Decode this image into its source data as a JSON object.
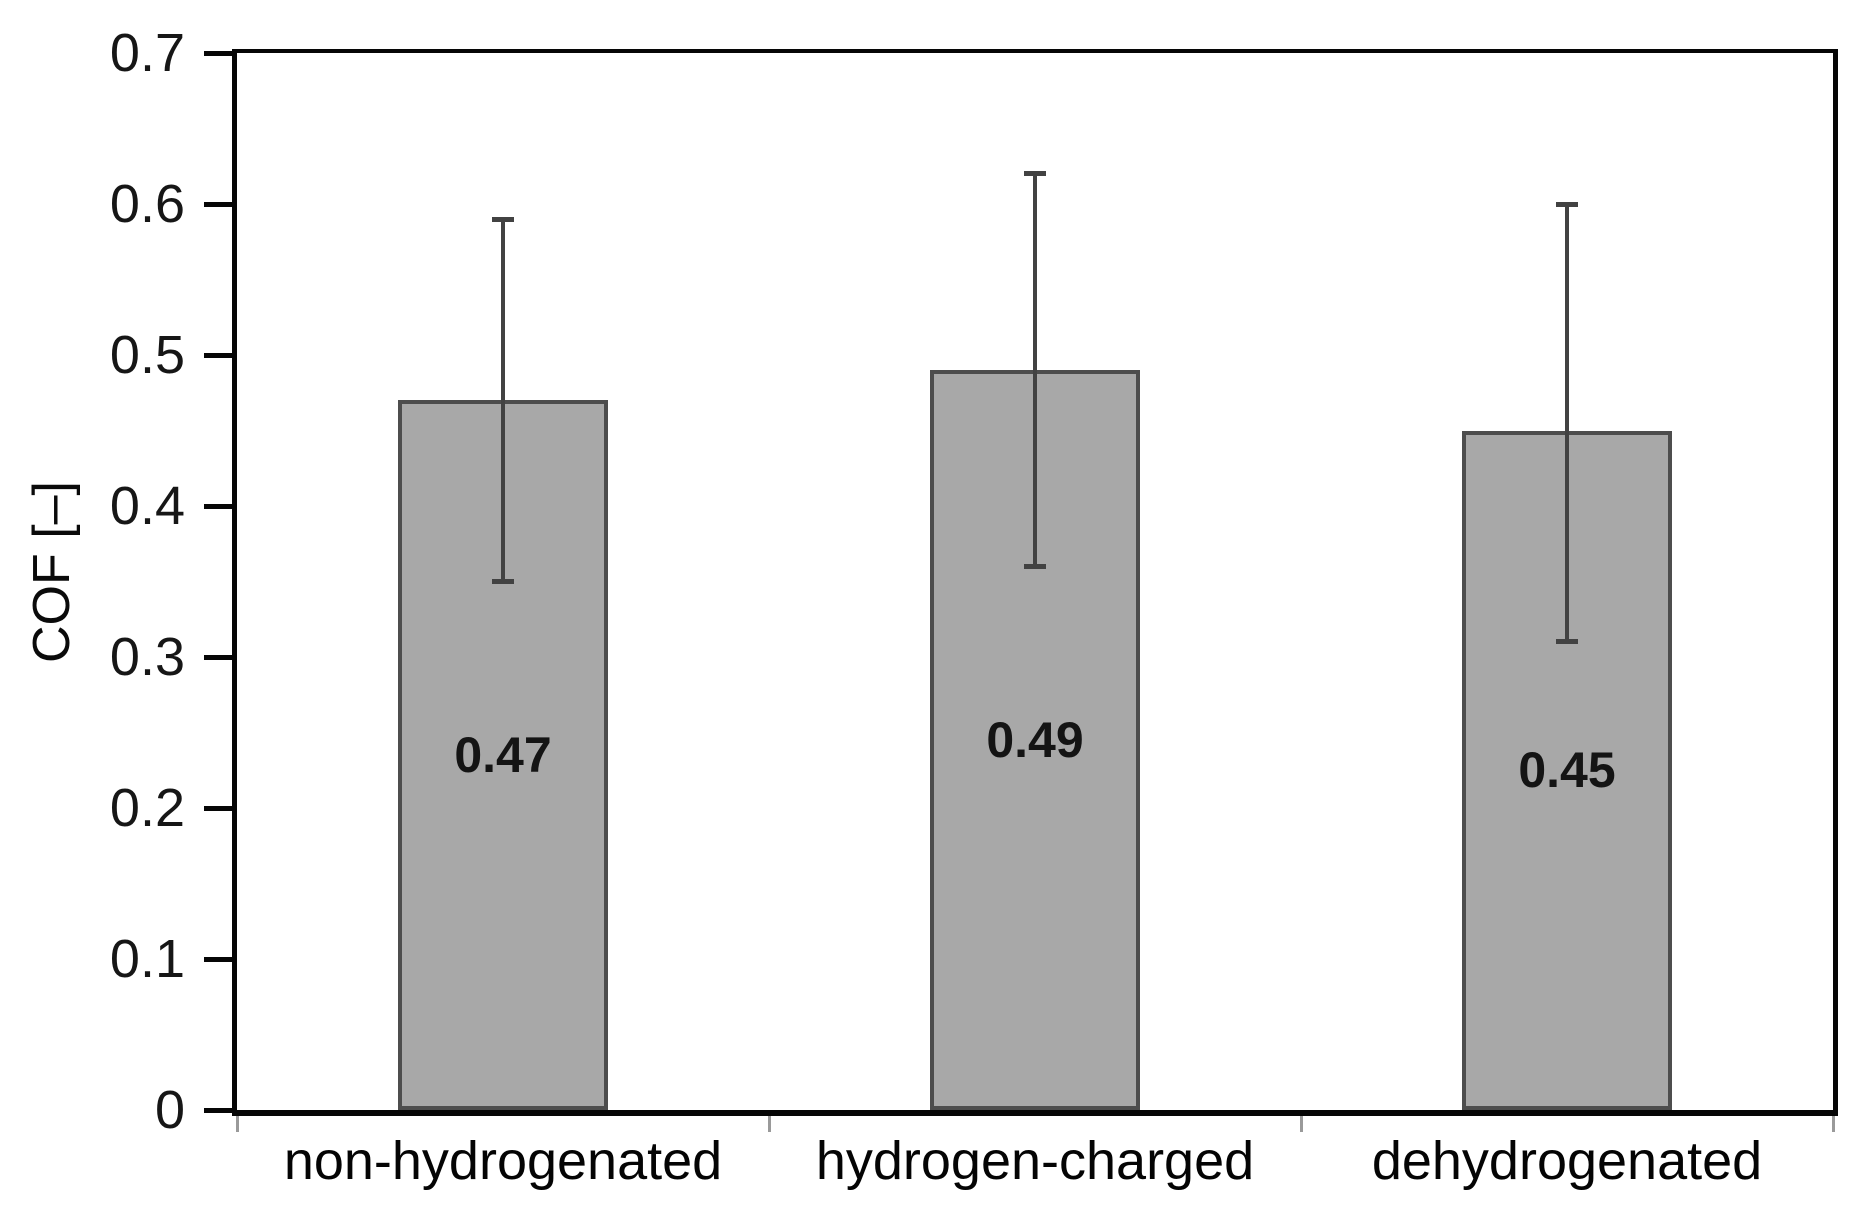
{
  "chart_data": {
    "type": "bar",
    "title": "",
    "xlabel": "",
    "ylabel": "COF [–]",
    "ylim": [
      0,
      0.7
    ],
    "ytick_step": 0.1,
    "ytick_labels": [
      "0",
      "0.1",
      "0.2",
      "0.3",
      "0.4",
      "0.5",
      "0.6",
      "0.7"
    ],
    "categories": [
      "non-hydrogenated",
      "hydrogen-charged",
      "dehydrogenated"
    ],
    "values": [
      0.47,
      0.49,
      0.45
    ],
    "data_labels": [
      "0.47",
      "0.49",
      "0.45"
    ],
    "error_low": [
      0.35,
      0.36,
      0.31
    ],
    "error_high": [
      0.59,
      0.62,
      0.6
    ],
    "grid": false,
    "legend": false,
    "plot_border": "full-box"
  },
  "colors": {
    "bar_fill": "#a8a8a8",
    "bar_border": "#4d4d4d",
    "error_bar": "#424242",
    "axis": "#060606",
    "tick_text": "#161616",
    "category_tick": "#9a9a9a",
    "background": "#ffffff"
  }
}
